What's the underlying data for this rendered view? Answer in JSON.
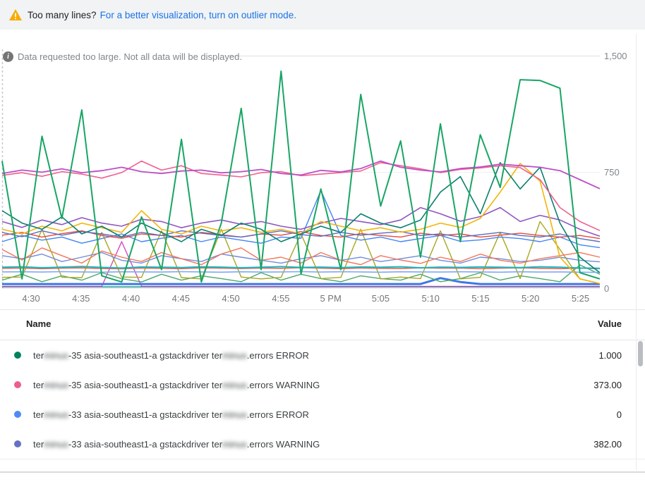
{
  "banner": {
    "icon": "warning-icon",
    "icon_color": "#f9ab00",
    "text": "Too many lines?",
    "link_text": "For a better visualization, turn on outlier mode.",
    "link_color": "#1a73e8"
  },
  "notice": {
    "icon": "info-icon",
    "text": "Data requested too large. Not all data will be displayed."
  },
  "chart_data": {
    "type": "line",
    "title": "",
    "xlabel": "",
    "ylabel": "",
    "ylim": [
      0,
      1500
    ],
    "grid": true,
    "legend_position": "bottom-table",
    "y_axis": {
      "side": "right",
      "tick_labels": [
        "1,500",
        "750",
        "0"
      ]
    },
    "x_axis": {
      "tick_labels": [
        "4:30",
        "4:35",
        "4:40",
        "4:45",
        "4:50",
        "4:55",
        "5 PM",
        "5:05",
        "5:10",
        "5:15",
        "5:20",
        "5:25"
      ]
    },
    "t_step_minutes": 2,
    "series": [
      {
        "id": "teal-base",
        "color": "#00897B",
        "width": 1.4,
        "values": [
          8,
          8,
          8,
          8,
          8,
          8,
          8,
          8,
          8,
          8,
          8,
          8,
          8,
          8,
          8,
          8,
          8,
          8,
          8,
          8,
          8,
          8,
          8,
          8,
          8,
          8,
          8,
          8,
          8,
          8,
          8
        ]
      },
      {
        "id": "magenta-base",
        "color": "#D349C4",
        "width": 1.4,
        "values": [
          12,
          12,
          12,
          12,
          12,
          12,
          300,
          12,
          12,
          12,
          12,
          12,
          12,
          12,
          12,
          12,
          12,
          12,
          12,
          12,
          12,
          12,
          12,
          12,
          12,
          12,
          12,
          12,
          12,
          12,
          12
        ]
      },
      {
        "id": "royal-blue-flat",
        "color": "#3B78E7",
        "width": 3,
        "values": [
          27,
          27,
          27,
          27,
          27,
          27,
          27,
          27,
          27,
          27,
          27,
          27,
          27,
          27,
          27,
          27,
          27,
          27,
          27,
          27,
          27,
          27,
          65,
          40,
          27,
          27,
          27,
          27,
          27,
          27,
          27
        ]
      },
      {
        "id": "green-low",
        "color": "#4CA966",
        "width": 1.4,
        "values": [
          52,
          90,
          42,
          80,
          52,
          100,
          62,
          40,
          90,
          52,
          80,
          62,
          42,
          100,
          52,
          90,
          62,
          42,
          80,
          62,
          52,
          90,
          42,
          62,
          100,
          52,
          80,
          62,
          42,
          150,
          90
        ]
      },
      {
        "id": "olive",
        "color": "#A8A722",
        "width": 1.4,
        "values": [
          70,
          72,
          380,
          70,
          68,
          360,
          72,
          70,
          370,
          68,
          60,
          380,
          72,
          60,
          70,
          350,
          62,
          70,
          380,
          60,
          72,
          62,
          370,
          60,
          70,
          360,
          62,
          430,
          250,
          60,
          30
        ]
      },
      {
        "id": "blue-flat",
        "color": "#7BAAF7",
        "width": 1.6,
        "values": [
          105,
          106,
          104,
          107,
          105,
          103,
          106,
          105,
          104,
          107,
          105,
          103,
          106,
          104,
          105,
          107,
          104,
          106,
          105,
          103,
          106,
          105,
          104,
          106,
          105,
          103,
          106,
          104,
          105,
          103,
          102
        ]
      },
      {
        "id": "red-band",
        "color": "#E8684A",
        "width": 1.6,
        "values": [
          128,
          130,
          126,
          129,
          131,
          127,
          125,
          130,
          128,
          126,
          131,
          129,
          127,
          130,
          128,
          132,
          129,
          126,
          130,
          128,
          127,
          131,
          129,
          130,
          126,
          129,
          131,
          128,
          126,
          129,
          125
        ]
      },
      {
        "id": "teal-band",
        "color": "#1CB5C4",
        "width": 2,
        "values": [
          135,
          138,
          132,
          136,
          140,
          134,
          130,
          137,
          135,
          133,
          138,
          136,
          132,
          135,
          139,
          134,
          136,
          133,
          137,
          135,
          138,
          132,
          136,
          134,
          137,
          135,
          133,
          138,
          135,
          130,
          128
        ]
      },
      {
        "id": "soft-blue",
        "color": "#6E8CDC",
        "width": 1.4,
        "values": [
          210,
          190,
          220,
          172,
          200,
          230,
          180,
          162,
          210,
          190,
          172,
          220,
          200,
          180,
          162,
          190,
          210,
          180,
          200,
          172,
          190,
          210,
          180,
          162,
          200,
          190,
          172,
          180,
          200,
          180,
          170
        ]
      },
      {
        "id": "coral",
        "color": "#F4745A",
        "width": 1.4,
        "values": [
          250,
          182,
          260,
          210,
          162,
          240,
          200,
          172,
          230,
          190,
          152,
          220,
          260,
          180,
          200,
          162,
          230,
          180,
          152,
          210,
          182,
          160,
          200,
          172,
          220,
          180,
          162,
          190,
          210,
          230,
          200
        ]
      },
      {
        "id": "blue",
        "color": "#4285F4",
        "width": 1.4,
        "values": [
          300,
          340,
          310,
          330,
          290,
          320,
          350,
          300,
          322,
          340,
          300,
          330,
          310,
          290,
          330,
          322,
          630,
          340,
          310,
          330,
          300,
          320,
          340,
          302,
          312,
          330,
          320,
          300,
          330,
          280,
          262
        ]
      },
      {
        "id": "red",
        "color": "#E5493D",
        "width": 1.4,
        "values": [
          342,
          360,
          330,
          352,
          370,
          340,
          322,
          350,
          340,
          330,
          360,
          345,
          330,
          350,
          342,
          365,
          340,
          330,
          352,
          340,
          330,
          355,
          340,
          350,
          330,
          342,
          355,
          340,
          330,
          340,
          320
        ]
      },
      {
        "id": "indigo",
        "color": "#5C6BC0",
        "width": 1.4,
        "values": [
          360,
          332,
          370,
          342,
          365,
          350,
          330,
          360,
          340,
          370,
          355,
          340,
          330,
          350,
          370,
          345,
          335,
          360,
          342,
          355,
          365,
          340,
          350,
          330,
          345,
          360,
          340,
          330,
          350,
          320,
          300
        ]
      },
      {
        "id": "purple",
        "color": "#8E57C1",
        "width": 1.6,
        "values": [
          430,
          392,
          440,
          410,
          455,
          420,
          400,
          445,
          430,
          390,
          420,
          440,
          412,
          430,
          400,
          380,
          420,
          450,
          430,
          410,
          440,
          520,
          480,
          432,
          462,
          520,
          430,
          470,
          440,
          380,
          335
        ]
      },
      {
        "id": "amber",
        "color": "#F2B50B",
        "width": 1.6,
        "values": [
          380,
          350,
          400,
          370,
          420,
          390,
          360,
          500,
          380,
          350,
          400,
          370,
          390,
          360,
          380,
          350,
          430,
          400,
          370,
          390,
          362,
          380,
          420,
          392,
          450,
          620,
          805,
          690,
          200,
          60,
          30
        ]
      },
      {
        "id": "dark-teal",
        "color": "#0B7F6E",
        "width": 1.6,
        "values": [
          500,
          420,
          380,
          460,
          350,
          400,
          330,
          420,
          360,
          300,
          380,
          340,
          420,
          380,
          300,
          350,
          400,
          360,
          480,
          420,
          390,
          440,
          620,
          720,
          480,
          810,
          640,
          780,
          420,
          200,
          100
        ]
      },
      {
        "id": "pink",
        "color": "#F0608E",
        "width": 1.6,
        "values": [
          728,
          745,
          722,
          752,
          736,
          710,
          746,
          820,
          762,
          790,
          740,
          730,
          718,
          745,
          752,
          726,
          736,
          746,
          756,
          810,
          790,
          770,
          746,
          766,
          776,
          790,
          778,
          700,
          520,
          430,
          372
        ]
      },
      {
        "id": "magenta",
        "color": "#BC4FC5",
        "width": 1.8,
        "values": [
          740,
          762,
          748,
          770,
          745,
          758,
          780,
          752,
          740,
          756,
          762,
          744,
          752,
          766,
          740,
          730,
          760,
          750,
          772,
          820,
          780,
          762,
          750,
          772,
          782,
          800,
          790,
          780,
          758,
          700,
          642
        ]
      },
      {
        "id": "green",
        "color": "#18A564",
        "width": 2,
        "values": [
          820,
          60,
          980,
          450,
          1150,
          80,
          40,
          460,
          120,
          960,
          40,
          420,
          1160,
          120,
          1400,
          90,
          640,
          120,
          1250,
          530,
          950,
          200,
          1060,
          300,
          990,
          650,
          1345,
          1340,
          1290,
          100,
          60
        ]
      }
    ]
  },
  "legend": {
    "header": {
      "name": "Name",
      "value": "Value"
    },
    "rows": [
      {
        "color": "#00835C",
        "value": "1.000",
        "name_parts": [
          {
            "t": "ter"
          },
          {
            "t": "minus",
            "blur": true
          },
          {
            "t": "-35 asia-southeast1-a gstackdriver ter"
          },
          {
            "t": "minus",
            "blur": true
          },
          {
            "t": ".errors ERROR"
          }
        ]
      },
      {
        "color": "#ED5E8D",
        "value": "373.00",
        "name_parts": [
          {
            "t": "ter"
          },
          {
            "t": "minus",
            "blur": true
          },
          {
            "t": "-35 asia-southeast1-a gstackdriver ter"
          },
          {
            "t": "minus",
            "blur": true
          },
          {
            "t": ".errors WARNING"
          }
        ]
      },
      {
        "color": "#4D8CF5",
        "value": "0",
        "name_parts": [
          {
            "t": "ter"
          },
          {
            "t": "minus",
            "blur": true
          },
          {
            "t": "-33 asia-southeast1-a gstackdriver ter"
          },
          {
            "t": "minus",
            "blur": true
          },
          {
            "t": ".errors ERROR"
          }
        ]
      },
      {
        "color": "#6670C4",
        "value": "382.00",
        "name_parts": [
          {
            "t": "ter"
          },
          {
            "t": "minus",
            "blur": true
          },
          {
            "t": "-33 asia-southeast1-a gstackdriver ter"
          },
          {
            "t": "minus",
            "blur": true
          },
          {
            "t": ".errors WARNING"
          }
        ]
      }
    ]
  }
}
